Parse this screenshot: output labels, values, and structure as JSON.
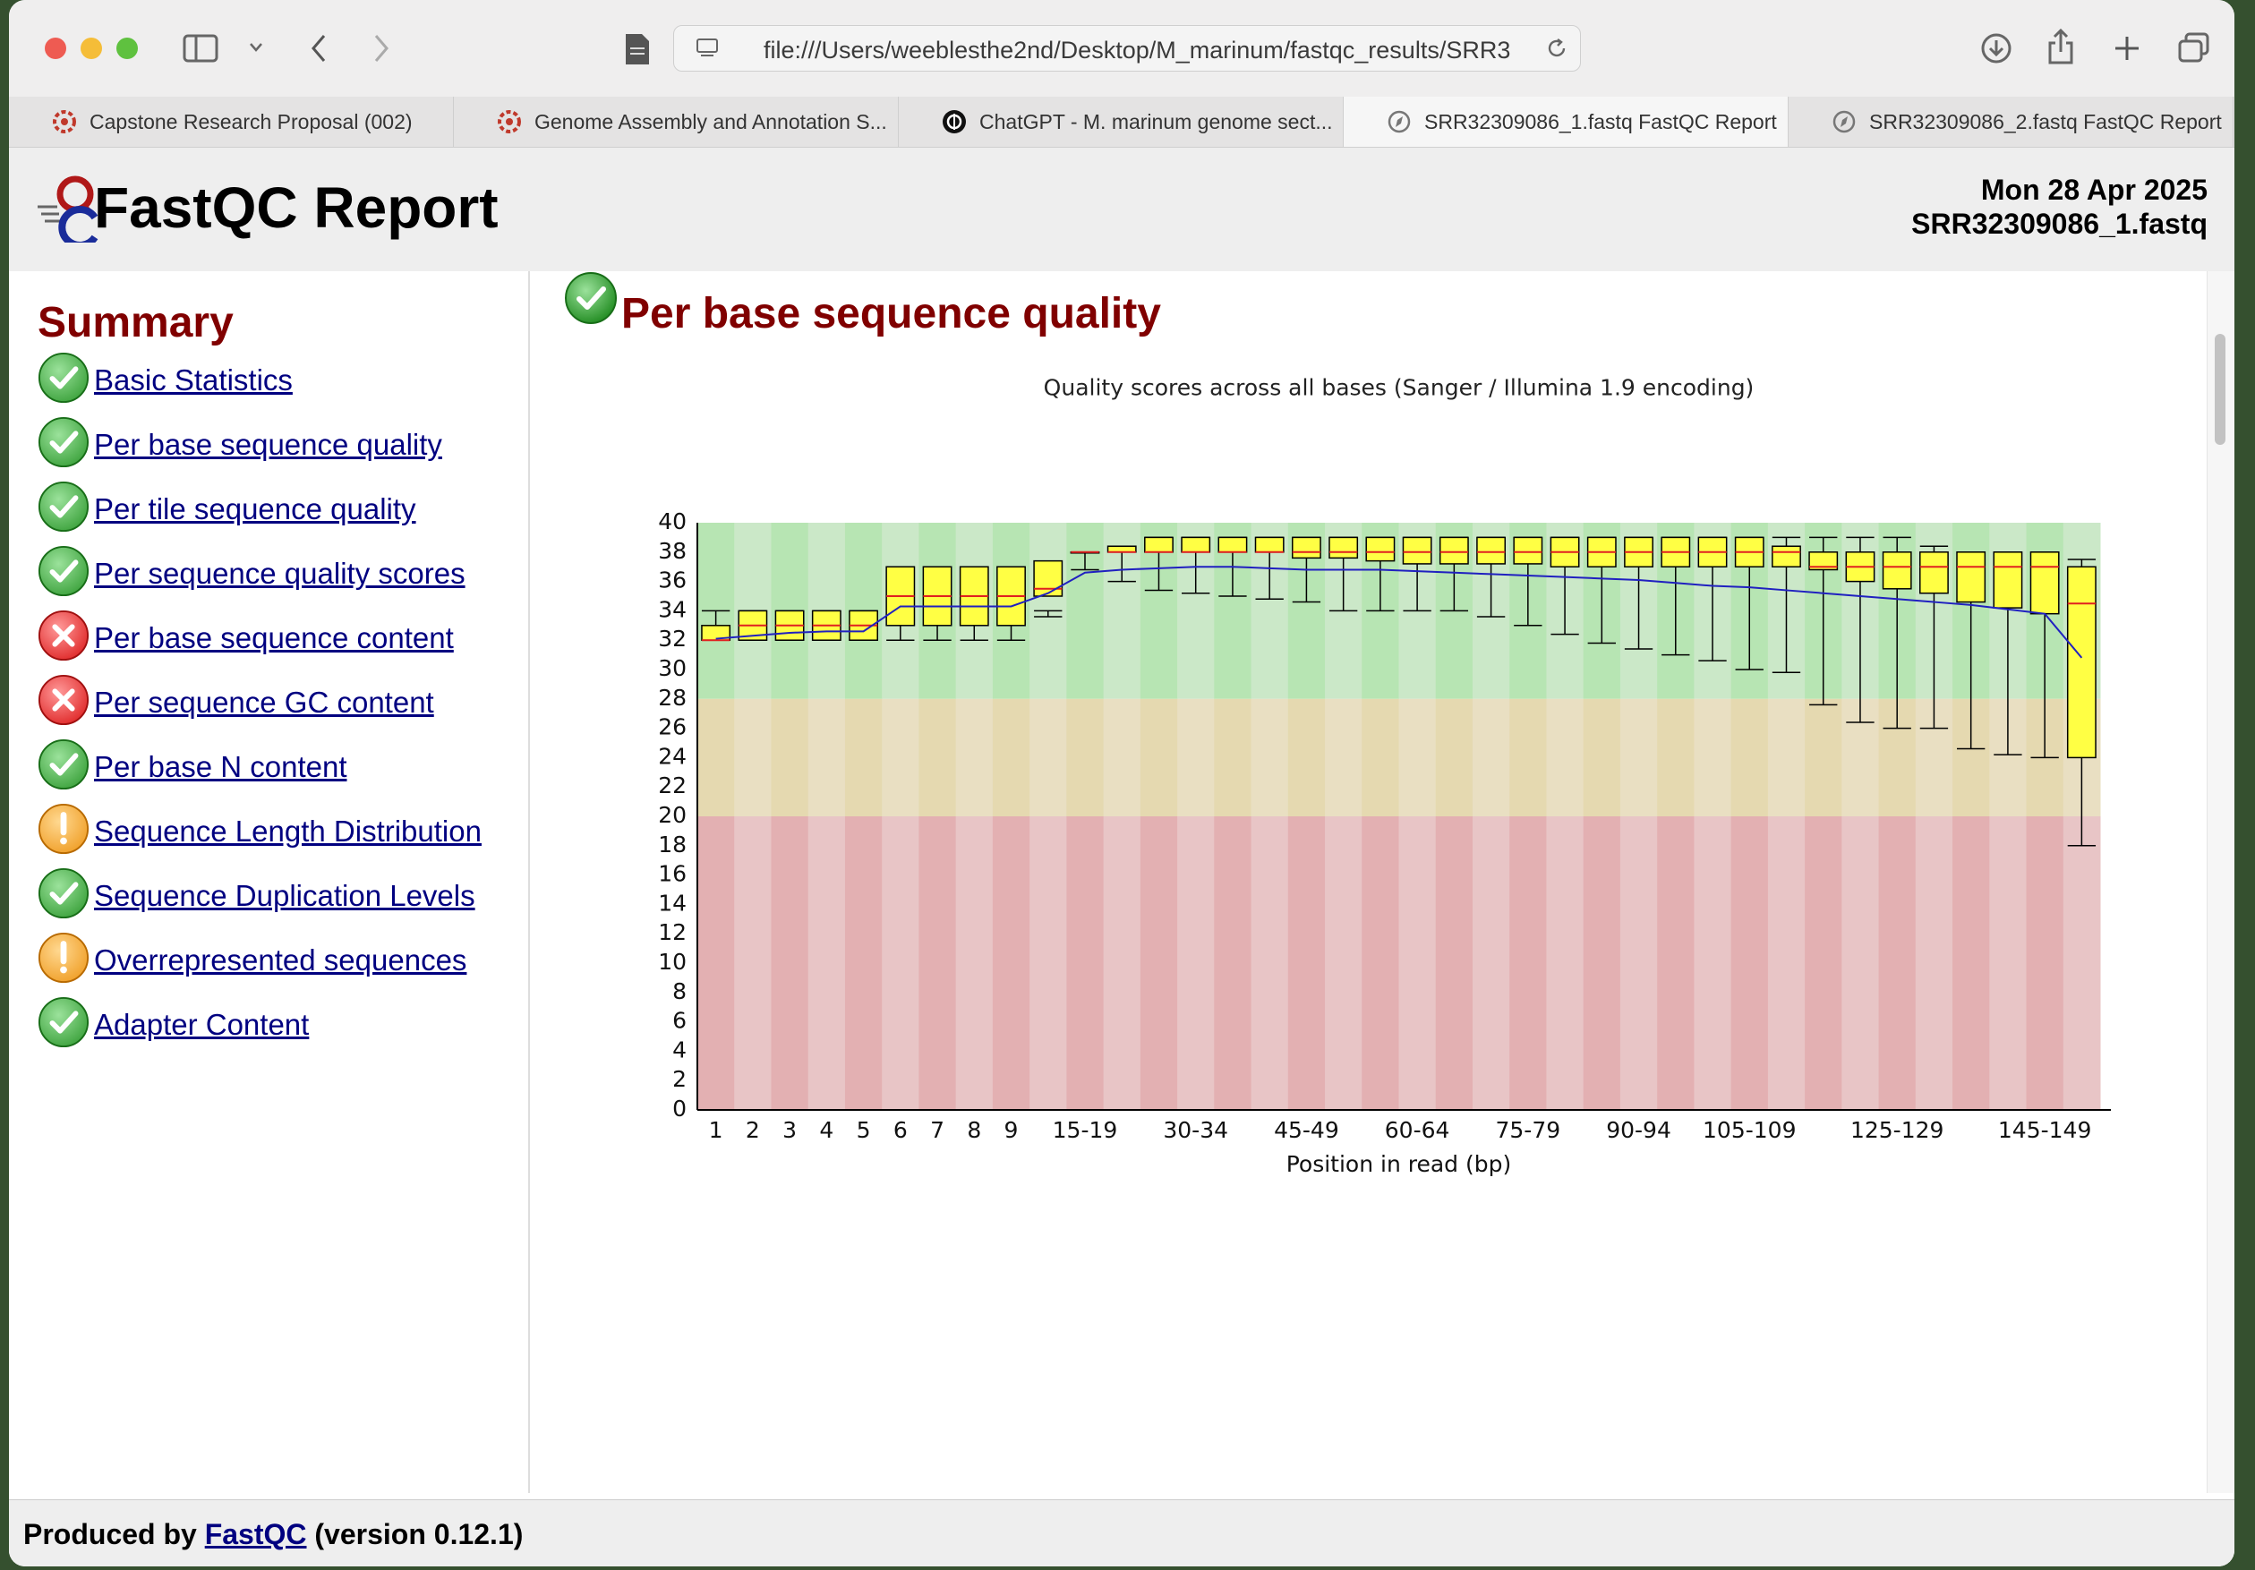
{
  "browser": {
    "url": "file:///Users/weeblesthe2nd/Desktop/M_marinum/fastqc_results/SRR3",
    "tabs": [
      {
        "label": "Capstone Research Proposal (002)",
        "icon": "office-icon",
        "active": false
      },
      {
        "label": "Genome Assembly and Annotation S...",
        "icon": "office-icon",
        "active": false
      },
      {
        "label": "ChatGPT - M. marinum genome sect...",
        "icon": "openai-icon",
        "active": false
      },
      {
        "label": "SRR32309086_1.fastq FastQC Report",
        "icon": "compass-icon",
        "active": true
      },
      {
        "label": "SRR32309086_2.fastq FastQC Report",
        "icon": "compass-icon",
        "active": false
      }
    ]
  },
  "report": {
    "title": "FastQC Report",
    "date": "Mon 28 Apr 2025",
    "filename": "SRR32309086_1.fastq"
  },
  "summary": {
    "title": "Summary",
    "modules": [
      {
        "label": "Basic Statistics",
        "status": "pass"
      },
      {
        "label": "Per base sequence quality",
        "status": "pass"
      },
      {
        "label": "Per tile sequence quality",
        "status": "pass"
      },
      {
        "label": "Per sequence quality scores",
        "status": "pass"
      },
      {
        "label": "Per base sequence content",
        "status": "fail"
      },
      {
        "label": "Per sequence GC content",
        "status": "fail"
      },
      {
        "label": "Per base N content",
        "status": "pass"
      },
      {
        "label": "Sequence Length Distribution",
        "status": "warn"
      },
      {
        "label": "Sequence Duplication Levels",
        "status": "pass"
      },
      {
        "label": "Overrepresented sequences",
        "status": "warn"
      },
      {
        "label": "Adapter Content",
        "status": "pass"
      }
    ]
  },
  "section": {
    "title": "Per base sequence quality",
    "status": "pass"
  },
  "footer": {
    "prefix": "Produced by ",
    "link": "FastQC",
    "suffix": " (version 0.12.1)"
  },
  "colors": {
    "pass": "#3ea33e",
    "fail": "#e02a2a",
    "warn": "#f0a02a",
    "heading": "#800000",
    "link": "#000080",
    "box": "#ffff44",
    "median": "#e02020",
    "mean": "#2020c0"
  },
  "chart_data": {
    "type": "box",
    "title": "Quality scores across all bases (Sanger / Illumina 1.9 encoding)",
    "xlabel": "Position in read (bp)",
    "ylabel": "",
    "ylim": [
      0,
      40
    ],
    "yticks": [
      0,
      2,
      4,
      6,
      8,
      10,
      12,
      14,
      16,
      18,
      20,
      22,
      24,
      26,
      28,
      30,
      32,
      34,
      36,
      38,
      40
    ],
    "background_bands": [
      {
        "from": 28,
        "to": 40,
        "zone": "good"
      },
      {
        "from": 20,
        "to": 28,
        "zone": "reasonable"
      },
      {
        "from": 0,
        "to": 20,
        "zone": "poor"
      }
    ],
    "categories": [
      "1",
      "2",
      "3",
      "4",
      "5",
      "6",
      "7",
      "8",
      "9",
      "10-14",
      "15-19",
      "20-24",
      "25-29",
      "30-34",
      "35-39",
      "40-44",
      "45-49",
      "50-54",
      "55-59",
      "60-64",
      "65-69",
      "70-74",
      "75-79",
      "80-84",
      "85-89",
      "90-94",
      "95-99",
      "100-104",
      "105-109",
      "110-114",
      "115-119",
      "120-124",
      "125-129",
      "130-134",
      "135-139",
      "140-144",
      "145-149",
      "150-151"
    ],
    "tick_labels": [
      "1",
      "2",
      "3",
      "4",
      "5",
      "6",
      "7",
      "8",
      "9",
      "15-19",
      "30-34",
      "45-49",
      "60-64",
      "75-79",
      "90-94",
      "105-109",
      "125-129",
      "145-149"
    ],
    "tick_indices": [
      0,
      1,
      2,
      3,
      4,
      5,
      6,
      7,
      8,
      10,
      13,
      16,
      19,
      22,
      25,
      28,
      32,
      36
    ],
    "series": [
      {
        "name": "median",
        "values": [
          32,
          33,
          33,
          33,
          33,
          35,
          35,
          35,
          35,
          35.5,
          38,
          38,
          38,
          38,
          38,
          38,
          38,
          38,
          38,
          38,
          38,
          38,
          38,
          38,
          38,
          38,
          38,
          38,
          38,
          38,
          37,
          37,
          37,
          37,
          37,
          37,
          37,
          34.5
        ]
      },
      {
        "name": "q1",
        "values": [
          32,
          32,
          32,
          32,
          32,
          33,
          33,
          33,
          33,
          35,
          38,
          38,
          38,
          38,
          38,
          38,
          37.6,
          37.6,
          37.4,
          37.2,
          37.2,
          37.2,
          37.2,
          37,
          37,
          37,
          37,
          37,
          37,
          37,
          36.8,
          36,
          35.5,
          35.2,
          34.6,
          34.2,
          33.8,
          24
        ]
      },
      {
        "name": "q3",
        "values": [
          33,
          34,
          34,
          34,
          34,
          37,
          37,
          37,
          37,
          37.4,
          38,
          38.4,
          39,
          39,
          39,
          39,
          39,
          39,
          39,
          39,
          39,
          39,
          39,
          39,
          39,
          39,
          39,
          39,
          39,
          38.4,
          38,
          38,
          38,
          38,
          38,
          38,
          38,
          37
        ]
      },
      {
        "name": "lower_whisker",
        "values": [
          32,
          32,
          32,
          32,
          32,
          32,
          32,
          32,
          32,
          33.6,
          36.8,
          36,
          35.4,
          35.2,
          35,
          34.8,
          34.6,
          34,
          34,
          34,
          34,
          33.6,
          33,
          32.4,
          31.8,
          31.4,
          31,
          30.6,
          30,
          29.8,
          27.6,
          26.4,
          26,
          26,
          24.6,
          24.2,
          24,
          18
        ]
      },
      {
        "name": "upper_whisker",
        "values": [
          34,
          34,
          34,
          34,
          34,
          34,
          34,
          34,
          34,
          34,
          38,
          38.4,
          39,
          39,
          39,
          39,
          39,
          39,
          39,
          39,
          39,
          39,
          39,
          39,
          39,
          39,
          39,
          39,
          39,
          39,
          39,
          39,
          39,
          38.4,
          38,
          38,
          38,
          37.5
        ]
      },
      {
        "name": "mean",
        "values": [
          32.1,
          32.3,
          32.5,
          32.6,
          32.6,
          34.3,
          34.3,
          34.3,
          34.3,
          35.2,
          36.6,
          36.8,
          36.9,
          37,
          37,
          36.9,
          36.8,
          36.8,
          36.8,
          36.7,
          36.6,
          36.5,
          36.4,
          36.3,
          36.2,
          36.1,
          35.9,
          35.7,
          35.6,
          35.4,
          35.2,
          35,
          34.8,
          34.6,
          34.4,
          34.1,
          33.8,
          30.8
        ]
      }
    ]
  }
}
